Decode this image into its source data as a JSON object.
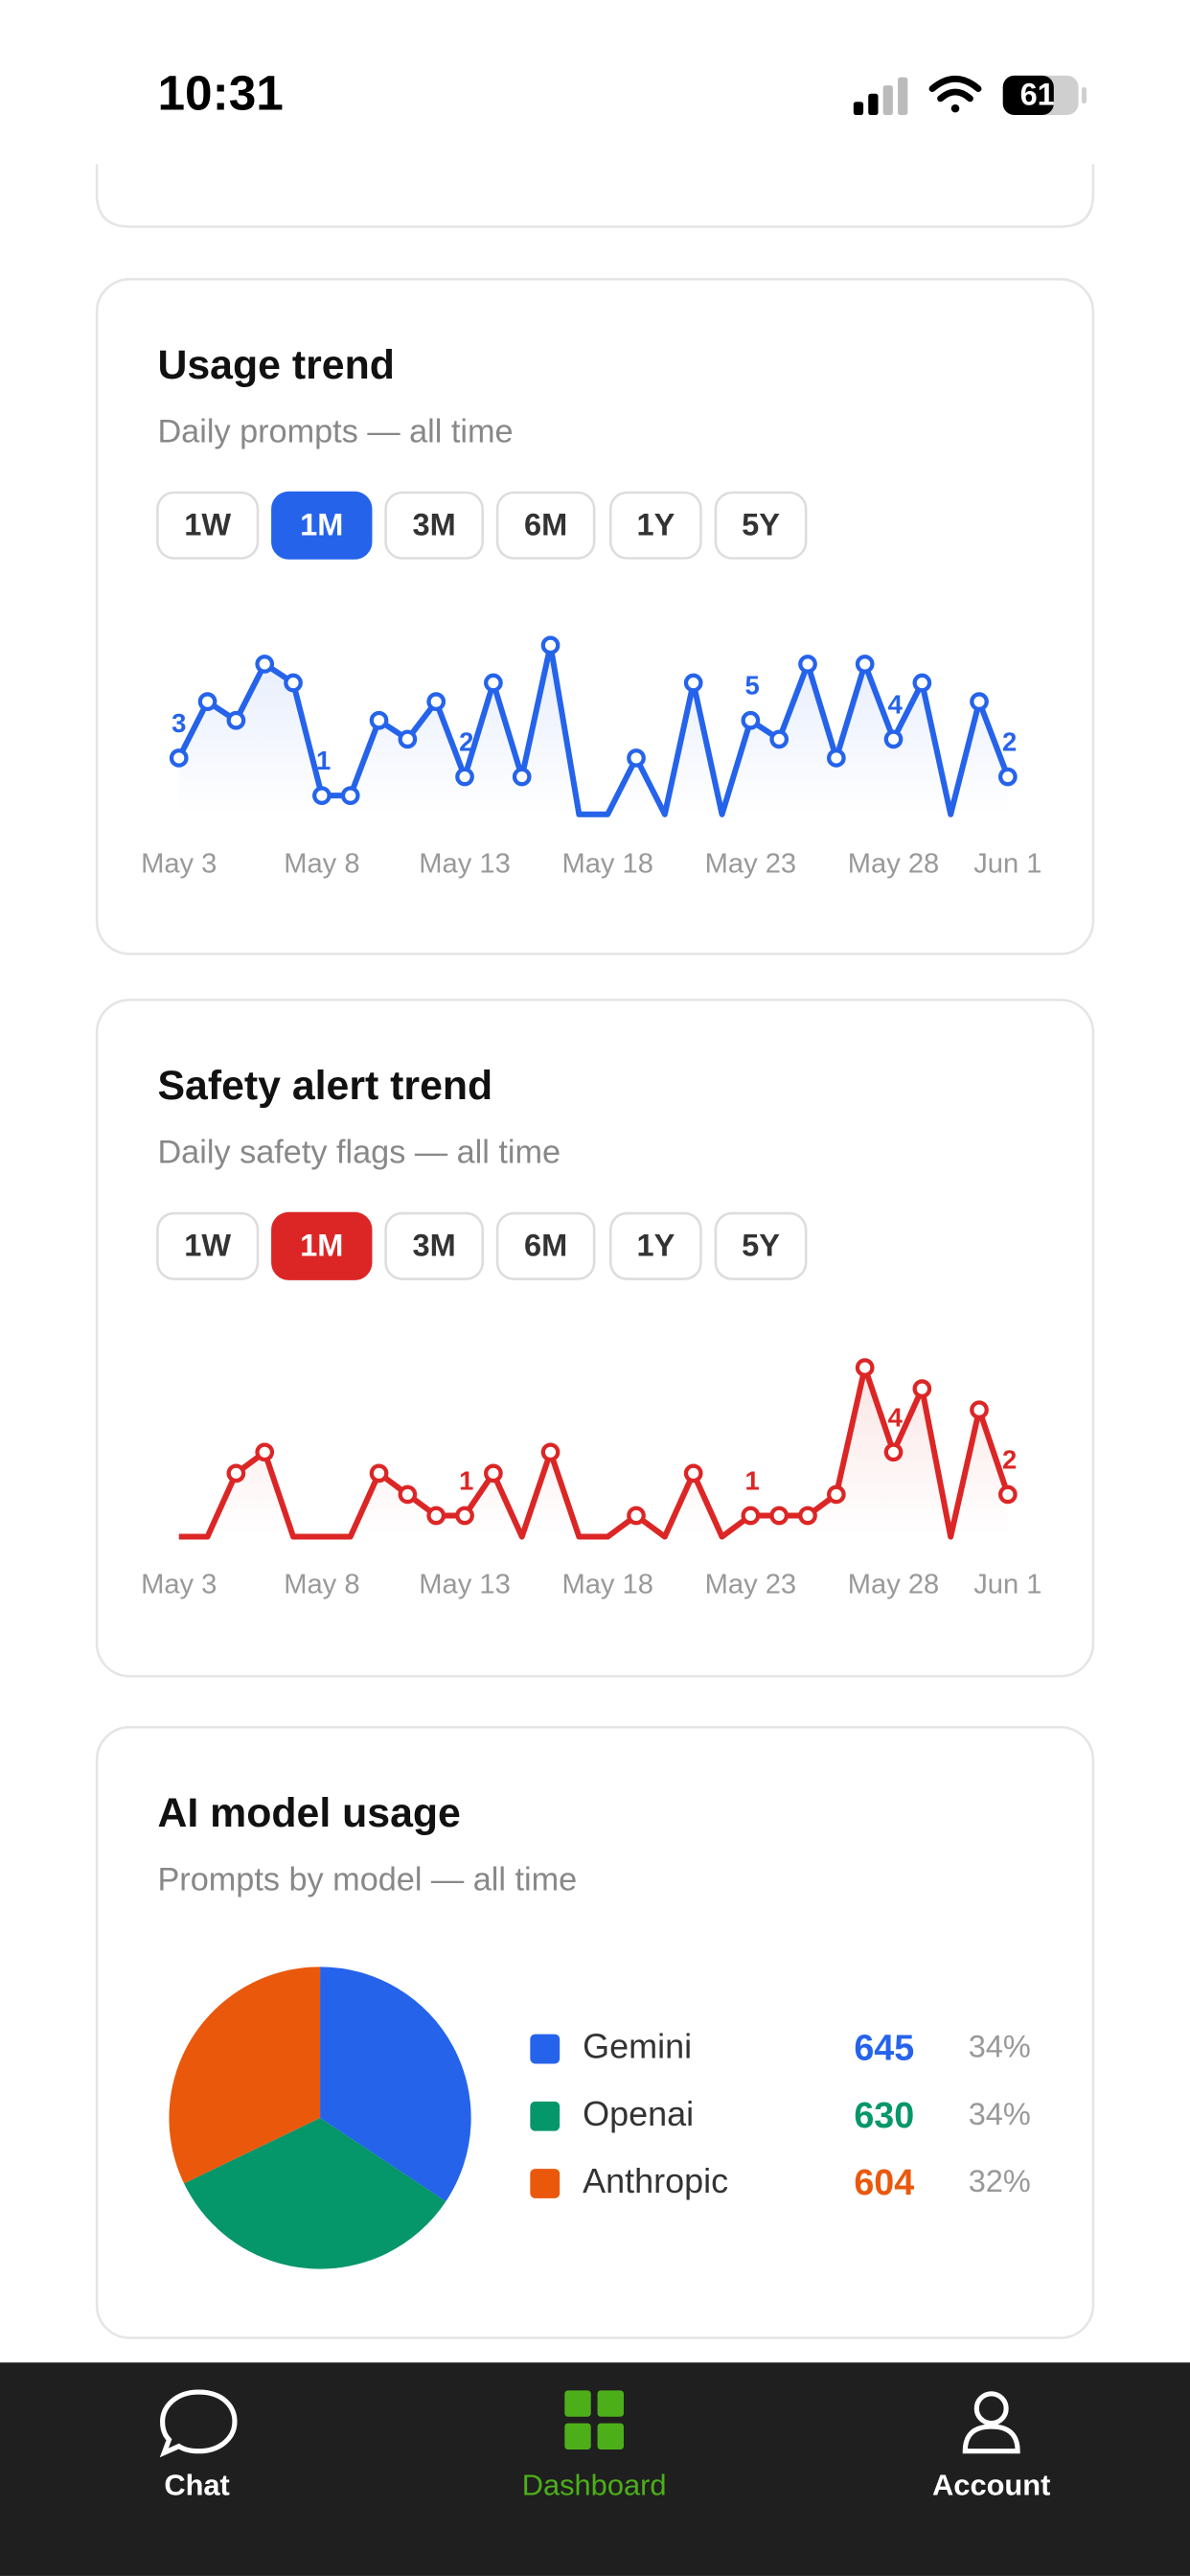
{
  "status_bar": {
    "time": "10:31",
    "battery": "61"
  },
  "chart_data": [
    {
      "type": "line",
      "title": "Usage trend",
      "subtitle": "Daily prompts — all time",
      "ranges": [
        "1W",
        "1M",
        "3M",
        "6M",
        "1Y",
        "5Y"
      ],
      "selected_range": "1M",
      "color": "#2563eb",
      "x": [
        "May 3",
        null,
        null,
        null,
        null,
        "May 8",
        null,
        null,
        null,
        null,
        "May 13",
        null,
        null,
        null,
        null,
        "May 18",
        null,
        null,
        null,
        null,
        "May 23",
        null,
        null,
        null,
        null,
        "May 28",
        null,
        null,
        null,
        "Jun 1"
      ],
      "values": [
        3,
        6,
        5,
        8,
        7,
        1,
        1,
        5,
        4,
        6,
        2,
        7,
        2,
        9,
        0,
        0,
        3,
        0,
        7,
        0,
        5,
        4,
        8,
        3,
        8,
        4,
        7,
        0,
        6,
        2
      ],
      "value_labels": [
        "3",
        null,
        null,
        null,
        null,
        "1",
        null,
        null,
        null,
        null,
        "2",
        null,
        null,
        null,
        null,
        null,
        null,
        null,
        null,
        null,
        "5",
        null,
        null,
        null,
        null,
        "4",
        null,
        null,
        null,
        "2"
      ],
      "ylim": [
        0,
        9
      ]
    },
    {
      "type": "line",
      "title": "Safety alert trend",
      "subtitle": "Daily safety flags — all time",
      "ranges": [
        "1W",
        "1M",
        "3M",
        "6M",
        "1Y",
        "5Y"
      ],
      "selected_range": "1M",
      "color": "#dc2626",
      "x": [
        "May 3",
        null,
        null,
        null,
        null,
        "May 8",
        null,
        null,
        null,
        null,
        "May 13",
        null,
        null,
        null,
        null,
        "May 18",
        null,
        null,
        null,
        null,
        "May 23",
        null,
        null,
        null,
        null,
        "May 28",
        null,
        null,
        null,
        "Jun 1"
      ],
      "values": [
        0,
        0,
        3,
        4,
        0,
        0,
        0,
        3,
        2,
        1,
        1,
        3,
        0,
        4,
        0,
        0,
        1,
        0,
        3,
        0,
        1,
        1,
        1,
        2,
        8,
        4,
        7,
        0,
        6,
        2
      ],
      "value_labels": [
        null,
        null,
        null,
        null,
        null,
        null,
        null,
        null,
        null,
        null,
        "1",
        null,
        null,
        null,
        null,
        null,
        null,
        null,
        null,
        null,
        "1",
        null,
        null,
        null,
        null,
        "4",
        null,
        null,
        null,
        "2"
      ],
      "ylim": [
        0,
        8
      ]
    },
    {
      "type": "pie",
      "title": "AI model usage",
      "subtitle": "Prompts by model — all time",
      "categories": [
        "Gemini",
        "Openai",
        "Anthropic"
      ],
      "values": [
        645,
        630,
        604
      ],
      "value_labels": [
        "34%",
        "34%",
        "32%"
      ],
      "colors": [
        "#2563eb",
        "#059669",
        "#ea580c"
      ]
    }
  ],
  "nav": [
    {
      "label": "Chat"
    },
    {
      "label": "Dashboard",
      "active": true
    },
    {
      "label": "Account"
    }
  ]
}
